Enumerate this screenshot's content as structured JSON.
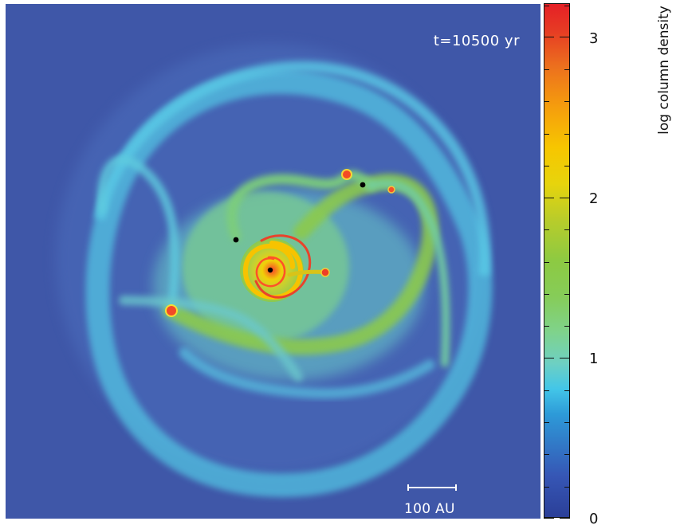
{
  "figure": {
    "time_label": "t=10500 yr",
    "scale_label": "100 AU",
    "colorbar_title": "log column density"
  },
  "colorbar": {
    "ticks": [
      {
        "value": 0,
        "label": "0"
      },
      {
        "value": 1,
        "label": "1"
      },
      {
        "value": 2,
        "label": "2"
      },
      {
        "value": 3,
        "label": "3"
      }
    ],
    "range": [
      0,
      3.2
    ]
  },
  "colors": {
    "background": "#3f57a8",
    "low": "#3fb8e3",
    "mid": "#8bc94d",
    "high": "#f0c600",
    "peak": "#e52026",
    "point": "#000000"
  }
}
